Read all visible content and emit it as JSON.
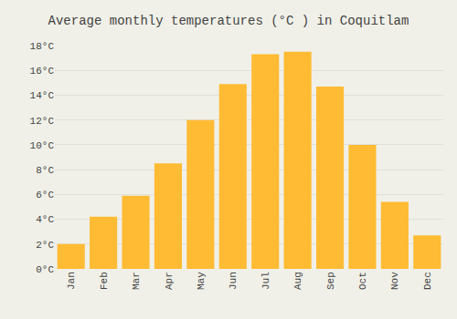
{
  "chart_data": {
    "type": "bar",
    "title": "Average monthly temperatures (°C ) in Coquitlam",
    "categories": [
      "Jan",
      "Feb",
      "Mar",
      "Apr",
      "May",
      "Jun",
      "Jul",
      "Aug",
      "Sep",
      "Oct",
      "Nov",
      "Dec"
    ],
    "values": [
      2.0,
      4.2,
      5.9,
      8.5,
      12.0,
      14.9,
      17.3,
      17.5,
      14.7,
      10.0,
      5.4,
      2.7
    ],
    "color": "#FFBB33",
    "ylim": [
      0,
      18
    ],
    "yticks": [
      {
        "value": 0,
        "label": "0°C"
      },
      {
        "value": 2,
        "label": "2°C"
      },
      {
        "value": 4,
        "label": "4°C"
      },
      {
        "value": 6,
        "label": "6°C"
      },
      {
        "value": 8,
        "label": "8°C"
      },
      {
        "value": 10,
        "label": "10°C"
      },
      {
        "value": 12,
        "label": "12°C"
      },
      {
        "value": 14,
        "label": "14°C"
      },
      {
        "value": 16,
        "label": "16°C"
      },
      {
        "value": 18,
        "label": "18°C"
      }
    ],
    "grid": true
  }
}
